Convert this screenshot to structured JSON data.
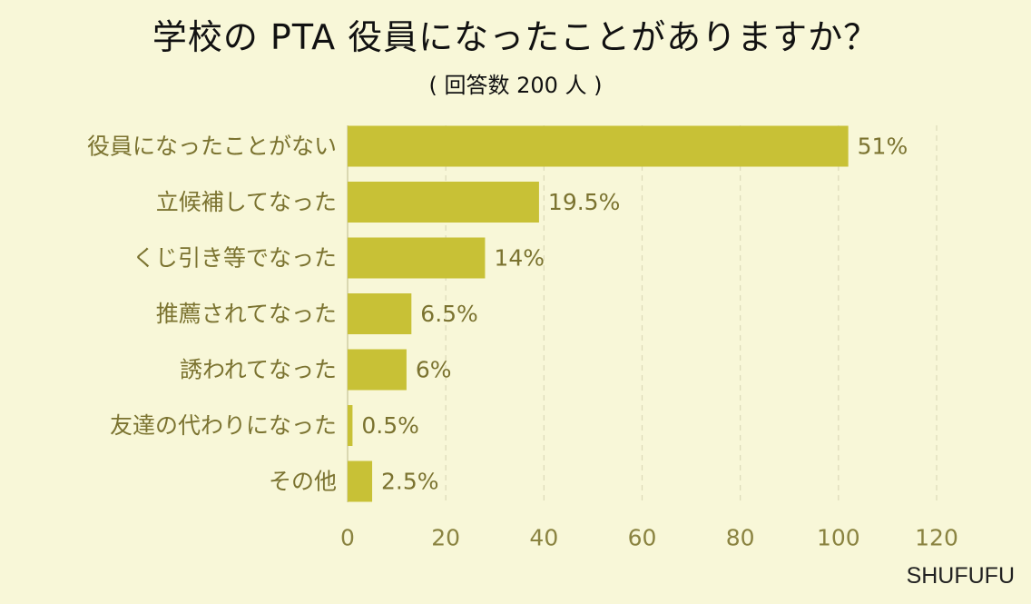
{
  "chart_data": {
    "type": "bar",
    "orientation": "horizontal",
    "title": "学校の PTA 役員になったことがありますか？",
    "subtitle": "( 回答数 200 人 )",
    "categories": [
      "役員になったことがない",
      "立候補してなった",
      "くじ引き等でなった",
      "推薦されてなった",
      "誘われてなった",
      "友達の代わりになった",
      "その他"
    ],
    "values": [
      102,
      39,
      28,
      13,
      12,
      1,
      5
    ],
    "value_labels": [
      "51%",
      "19.5%",
      "14%",
      "6.5%",
      "6%",
      "0.5%",
      "2.5%"
    ],
    "xlim": [
      0,
      120
    ],
    "xticks": [
      "0",
      "20",
      "40",
      "60",
      "80",
      "100",
      "120"
    ],
    "xtick_values": [
      0,
      20,
      40,
      60,
      80,
      100,
      120
    ],
    "grid": true,
    "bar_color": "#c8c136",
    "grid_color": "#dcdab8",
    "label_color": "#7b7330"
  },
  "source": "SHUFUFU"
}
